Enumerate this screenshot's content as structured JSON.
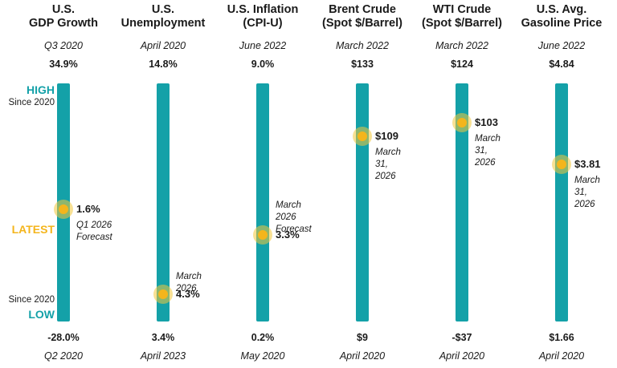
{
  "legend": {
    "high": "HIGH",
    "high_sub": "Since 2020",
    "latest": "LATEST",
    "low_sub": "Since 2020",
    "low": "LOW"
  },
  "colors": {
    "bar": "#14a1a8",
    "high_low_label": "#14a1a8",
    "latest_label": "#f4b51c",
    "marker": "#f4b51c"
  },
  "chart_data": {
    "type": "range-bar",
    "indicators": [
      {
        "title": "U.S.\nGDP Growth",
        "high": 34.9,
        "high_label": "34.9%",
        "high_date": "Q3 2020",
        "low": -28.0,
        "low_label": "-28.0%",
        "low_date": "Q2 2020",
        "latest": 1.6,
        "latest_label": "1.6%",
        "latest_note": "Q1 2026\nForecast",
        "note_position": "below"
      },
      {
        "title": "U.S.\nUnemployment",
        "high": 14.8,
        "high_label": "14.8%",
        "high_date": "April 2020",
        "low": 3.4,
        "low_label": "3.4%",
        "low_date": "April 2023",
        "latest": 4.3,
        "latest_label": "4.3%",
        "latest_note": "March 2026",
        "note_position": "above"
      },
      {
        "title": "U.S. Inflation\n(CPI-U)",
        "high": 9.0,
        "high_label": "9.0%",
        "high_date": "June 2022",
        "low": 0.2,
        "low_label": "0.2%",
        "low_date": "May 2020",
        "latest": 3.3,
        "latest_label": "3.3%",
        "latest_note": "March 2026\nForecast",
        "note_position": "above"
      },
      {
        "title": "Brent Crude\n(Spot $/Barrel)",
        "high": 133,
        "high_label": "$133",
        "high_date": "March 2022",
        "low": 9,
        "low_label": "$9",
        "low_date": "April 2020",
        "latest": 109,
        "latest_label": "$109",
        "latest_note": "March 31,\n2026",
        "note_position": "below"
      },
      {
        "title": "WTI Crude\n(Spot $/Barrel)",
        "high": 124,
        "high_label": "$124",
        "high_date": "March 2022",
        "low": -37,
        "low_label": "-$37",
        "low_date": "April 2020",
        "latest": 103,
        "latest_label": "$103",
        "latest_note": "March 31,\n2026",
        "note_position": "below"
      },
      {
        "title": "U.S. Avg.\nGasoline Price",
        "high": 4.84,
        "high_label": "$4.84",
        "high_date": "June 2022",
        "low": 1.66,
        "low_label": "$1.66",
        "low_date": "April 2020",
        "latest": 3.81,
        "latest_label": "$3.81",
        "latest_note": "March 31,\n2026",
        "note_position": "below"
      }
    ]
  }
}
